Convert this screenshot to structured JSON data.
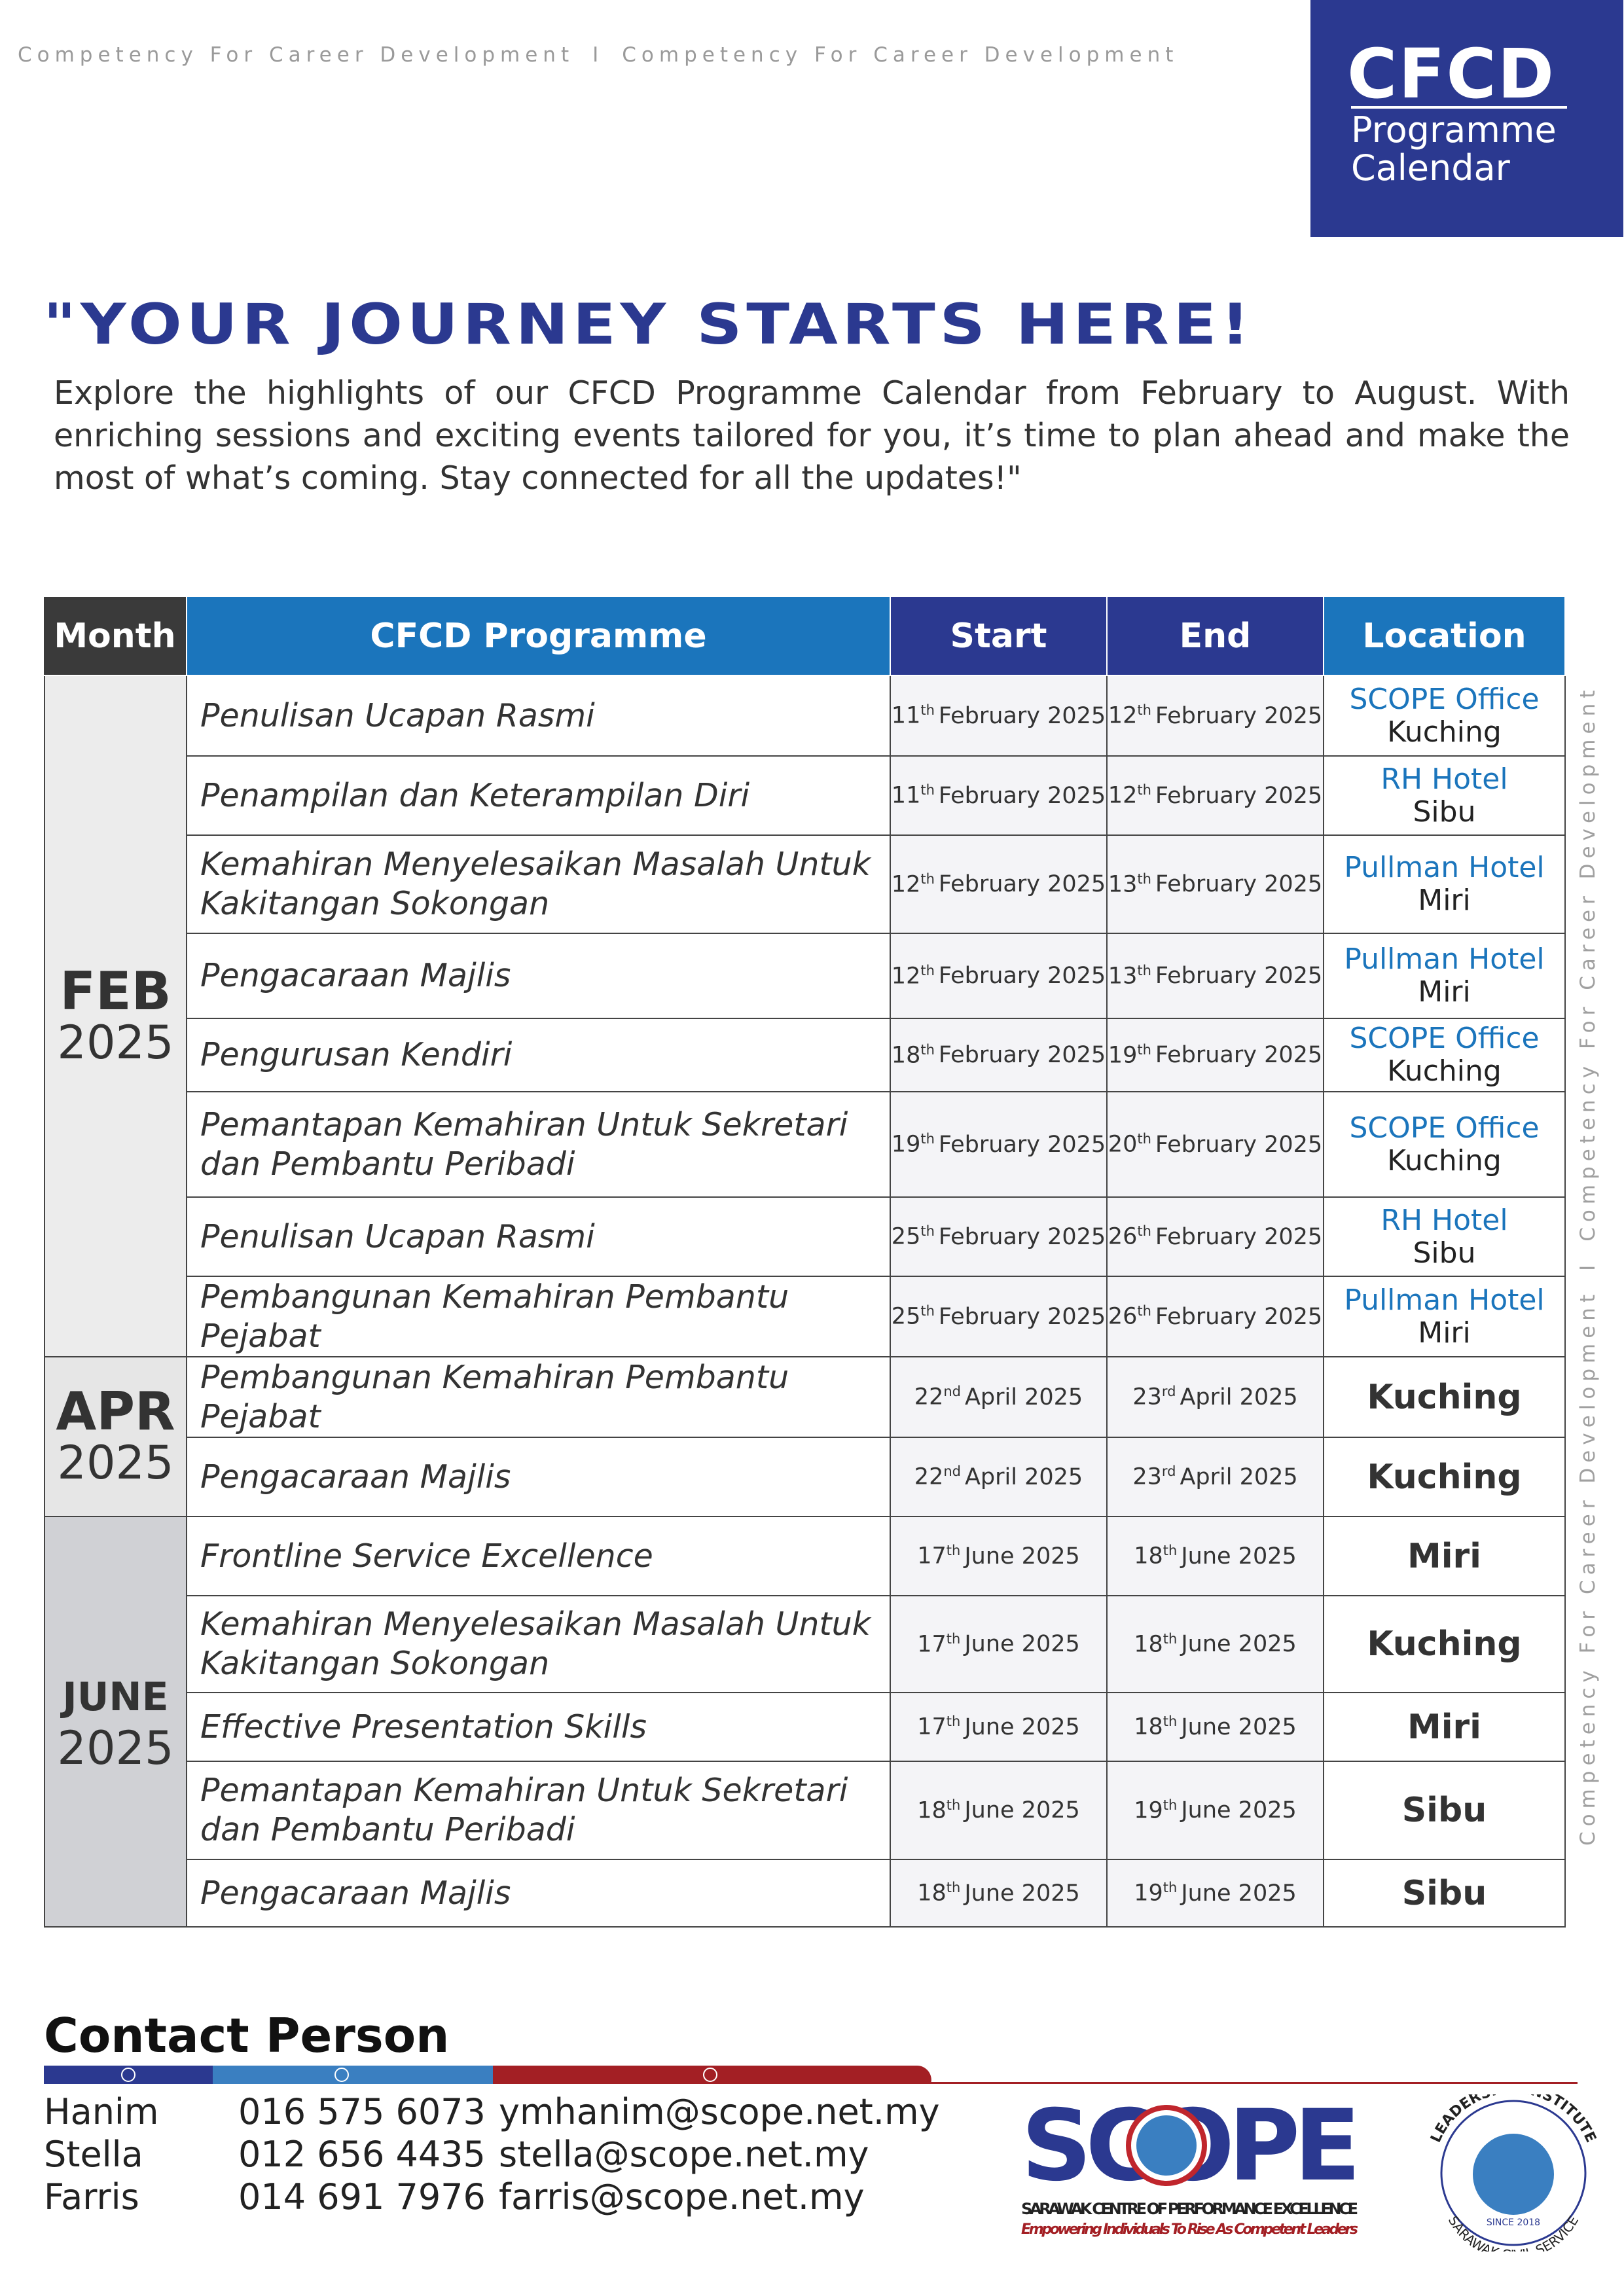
{
  "header": {
    "tagline": [
      "Competency For Career Development",
      "I",
      "Competency For Career Development"
    ],
    "logo_title": "CFCD",
    "logo_subtitle": [
      "Programme",
      "Calendar"
    ]
  },
  "headline": "\"YOUR JOURNEY STARTS HERE!",
  "intro": "Explore the highlights of our CFCD Programme Calendar from February to August. With enriching sessions and exciting events tailored for you, it’s time to plan ahead and make the most of what’s coming. Stay connected for all the updates!\"",
  "side_text": [
    "Competency For Career Development",
    "I",
    "Competency For Career Development"
  ],
  "table": {
    "headers": [
      "Month",
      "CFCD Programme",
      "Start",
      "End",
      "Location"
    ],
    "groups": [
      {
        "month": "FEB",
        "year": "2025",
        "rows": [
          {
            "programme": "Penulisan Ucapan Rasmi",
            "start": {
              "day": "11",
              "suffix": "th",
              "rest": "February 2025"
            },
            "end": {
              "day": "12",
              "suffix": "th",
              "rest": "February 2025"
            },
            "location": {
              "venue": "SCOPE Office",
              "city": "Kuching"
            }
          },
          {
            "programme": "Penampilan dan Keterampilan Diri",
            "start": {
              "day": "11",
              "suffix": "th",
              "rest": "February 2025"
            },
            "end": {
              "day": "12",
              "suffix": "th",
              "rest": "February 2025"
            },
            "location": {
              "venue": "RH Hotel",
              "city": "Sibu"
            }
          },
          {
            "programme": "Kemahiran Menyelesaikan Masalah Untuk Kakitangan Sokongan",
            "start": {
              "day": "12",
              "suffix": "th",
              "rest": "February 2025"
            },
            "end": {
              "day": "13",
              "suffix": "th",
              "rest": "February 2025"
            },
            "location": {
              "venue": "Pullman Hotel",
              "city": "Miri"
            }
          },
          {
            "programme": "Pengacaraan Majlis",
            "start": {
              "day": "12",
              "suffix": "th",
              "rest": "February 2025"
            },
            "end": {
              "day": "13",
              "suffix": "th",
              "rest": "February 2025"
            },
            "location": {
              "venue": "Pullman Hotel",
              "city": "Miri"
            }
          },
          {
            "programme": "Pengurusan Kendiri",
            "start": {
              "day": "18",
              "suffix": "th",
              "rest": "February 2025"
            },
            "end": {
              "day": "19",
              "suffix": "th",
              "rest": "February 2025"
            },
            "location": {
              "venue": "SCOPE Office",
              "city": "Kuching"
            }
          },
          {
            "programme": "Pemantapan Kemahiran Untuk Sekretari dan Pembantu Peribadi",
            "start": {
              "day": "19",
              "suffix": "th",
              "rest": "February 2025"
            },
            "end": {
              "day": "20",
              "suffix": "th",
              "rest": "February 2025"
            },
            "location": {
              "venue": "SCOPE Office",
              "city": "Kuching"
            }
          },
          {
            "programme": "Penulisan Ucapan Rasmi",
            "start": {
              "day": "25",
              "suffix": "th",
              "rest": "February 2025"
            },
            "end": {
              "day": "26",
              "suffix": "th",
              "rest": "February 2025"
            },
            "location": {
              "venue": "RH Hotel",
              "city": "Sibu"
            }
          },
          {
            "programme": "Pembangunan Kemahiran Pembantu Pejabat",
            "start": {
              "day": "25",
              "suffix": "th",
              "rest": "February 2025"
            },
            "end": {
              "day": "26",
              "suffix": "th",
              "rest": "February 2025"
            },
            "location": {
              "venue": "Pullman Hotel",
              "city": "Miri"
            }
          }
        ]
      },
      {
        "month": "APR",
        "year": "2025",
        "rows": [
          {
            "programme": "Pembangunan Kemahiran Pembantu Pejabat",
            "start": {
              "day": "22",
              "suffix": "nd",
              "rest": "April 2025"
            },
            "end": {
              "day": "23",
              "suffix": "rd",
              "rest": "April 2025"
            },
            "location": {
              "city": "Kuching"
            }
          },
          {
            "programme": "Pengacaraan Majlis",
            "start": {
              "day": "22",
              "suffix": "nd",
              "rest": "April 2025"
            },
            "end": {
              "day": "23",
              "suffix": "rd",
              "rest": "April 2025"
            },
            "location": {
              "city": "Kuching"
            }
          }
        ]
      },
      {
        "month": "JUNE",
        "year": "2025",
        "rows": [
          {
            "programme": "Frontline Service Excellence",
            "start": {
              "day": "17",
              "suffix": "th",
              "rest": "June 2025"
            },
            "end": {
              "day": "18",
              "suffix": "th",
              "rest": "June 2025"
            },
            "location": {
              "city": "Miri"
            }
          },
          {
            "programme": "Kemahiran Menyelesaikan Masalah Untuk Kakitangan Sokongan",
            "start": {
              "day": "17",
              "suffix": "th",
              "rest": "June 2025"
            },
            "end": {
              "day": "18",
              "suffix": "th",
              "rest": "June 2025"
            },
            "location": {
              "city": "Kuching"
            }
          },
          {
            "programme": "Effective Presentation Skills",
            "start": {
              "day": "17",
              "suffix": "th",
              "rest": "June 2025"
            },
            "end": {
              "day": "18",
              "suffix": "th",
              "rest": "June 2025"
            },
            "location": {
              "city": "Miri"
            }
          },
          {
            "programme": "Pemantapan Kemahiran Untuk Sekretari dan Pembantu Peribadi",
            "start": {
              "day": "18",
              "suffix": "th",
              "rest": "June 2025"
            },
            "end": {
              "day": "19",
              "suffix": "th",
              "rest": "June 2025"
            },
            "location": {
              "city": "Sibu"
            }
          },
          {
            "programme": "Pengacaraan Majlis",
            "start": {
              "day": "18",
              "suffix": "th",
              "rest": "June 2025"
            },
            "end": {
              "day": "19",
              "suffix": "th",
              "rest": "June 2025"
            },
            "location": {
              "city": "Sibu"
            }
          }
        ]
      }
    ]
  },
  "contact": {
    "title": "Contact Person",
    "people": [
      {
        "name": "Hanim",
        "phone": "016 575 6073",
        "email": "ymhanim@scope.net.my"
      },
      {
        "name": "Stella",
        "phone": "012 656 4435",
        "email": "stella@scope.net.my"
      },
      {
        "name": "Farris",
        "phone": "014 691 7976",
        "email": "farris@scope.net.my"
      }
    ]
  },
  "footer": {
    "scope_logo": "SCOPE",
    "scope_name": "SARAWAK CENTRE OF PERFORMANCE EXCELLENCE",
    "scope_tagline": "Empowering Individuals To Rise As Competent Leaders",
    "badge_top": "LEADERSHIP INSTITUTE",
    "badge_since": "SINCE 2018",
    "badge_bottom": "SARAWAK CIVIL SERVICE"
  }
}
